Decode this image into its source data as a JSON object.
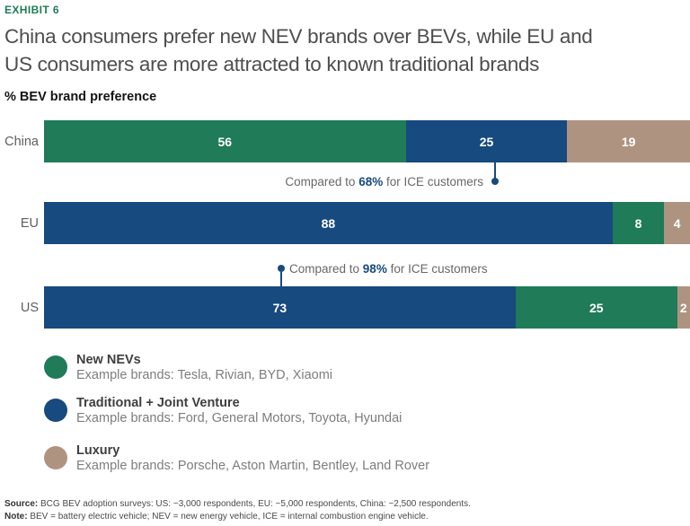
{
  "exhibit_label": "EXHIBIT 6",
  "title_line1": "China consumers prefer new NEV brands over BEVs, while EU and",
  "title_line2": "US consumers are more attracted to known traditional brands",
  "subtitle": "% BEV brand preference",
  "colors": {
    "green": "#1F7B58",
    "blue": "#174A7E",
    "tan": "#AE9480"
  },
  "chart_data": {
    "type": "bar",
    "orientation": "horizontal-stacked",
    "scale_max": 100,
    "categories": [
      "China",
      "EU",
      "US"
    ],
    "series_names": [
      "New NEVs",
      "Traditional + Joint Venture",
      "Luxury"
    ],
    "rows": [
      {
        "label": "China",
        "segments": [
          {
            "series": "New NEVs",
            "value": 56,
            "color": "green"
          },
          {
            "series": "Traditional + Joint Venture",
            "value": 25,
            "color": "blue"
          },
          {
            "series": "Luxury",
            "value": 19,
            "color": "tan"
          }
        ]
      },
      {
        "label": "EU",
        "segments": [
          {
            "series": "Traditional + Joint Venture",
            "value": 88,
            "color": "blue"
          },
          {
            "series": "New NEVs",
            "value": 8,
            "color": "green"
          },
          {
            "series": "Luxury",
            "value": 4,
            "color": "tan"
          }
        ]
      },
      {
        "label": "US",
        "segments": [
          {
            "series": "Traditional + Joint Venture",
            "value": 73,
            "color": "blue"
          },
          {
            "series": "New NEVs",
            "value": 25,
            "color": "green"
          },
          {
            "series": "Luxury",
            "value": 2,
            "color": "tan"
          }
        ]
      }
    ],
    "annotations": [
      {
        "prefix": "Compared to ",
        "highlight": "68%",
        "suffix": " for ICE customers",
        "target": "China Traditional + Joint Venture segment",
        "pointer_direction": "up"
      },
      {
        "prefix": "Compared to ",
        "highlight": "98%",
        "suffix": " for ICE customers",
        "target": "US Traditional + Joint Venture segment",
        "pointer_direction": "down"
      }
    ]
  },
  "legend": [
    {
      "name": "New NEVs",
      "description": "Example brands: Tesla, Rivian, BYD, Xiaomi",
      "color": "green"
    },
    {
      "name": "Traditional + Joint Venture",
      "description": "Example brands: Ford, General Motors, Toyota, Hyundai",
      "color": "blue"
    },
    {
      "name": "Luxury",
      "description": "Example brands: Porsche, Aston Martin, Bentley, Land Rover",
      "color": "tan"
    }
  ],
  "footer": {
    "source_label": "Source:",
    "source_text": " BCG BEV adoption surveys: US: ~3,000 respondents, EU: ~5,000 respondents, China: ~2,500 respondents.",
    "note_label": "Note:",
    "note_text": " BEV = battery electric vehicle; NEV = new energy vehicle, ICE = internal combustion engine vehicle."
  }
}
